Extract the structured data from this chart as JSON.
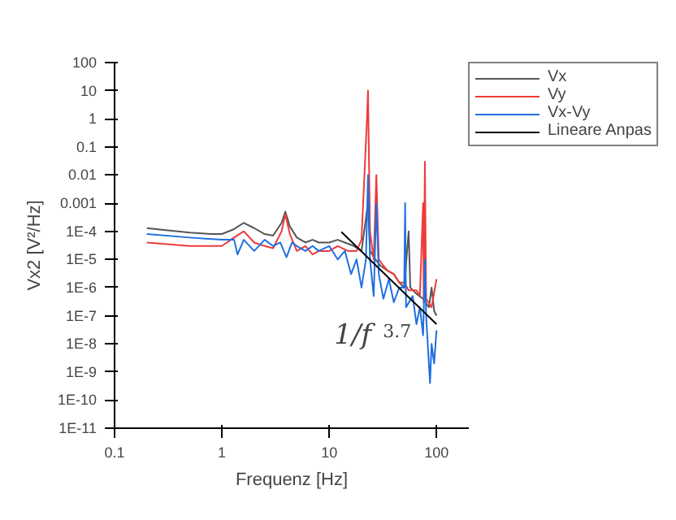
{
  "chart_data": {
    "type": "line",
    "xlabel": "Frequenz [Hz]",
    "ylabel": "Vx2 [V²/Hz]",
    "log": "xy",
    "grid": false,
    "legend": "top right",
    "xlim": [
      0.1,
      200
    ],
    "xticks": [
      0.1,
      1,
      10,
      100
    ],
    "ylim": [
      1e-11,
      100
    ],
    "yticks": [
      100,
      10,
      1,
      0.1,
      0.01,
      0.001,
      {
        "value": 0.0001,
        "label": "1E-4"
      },
      {
        "value": 1e-05,
        "label": "1E-5"
      },
      {
        "value": 1e-06,
        "label": "1E-6"
      },
      {
        "value": 1e-07,
        "label": "1E-7"
      },
      {
        "value": 1e-08,
        "label": "1E-8"
      },
      {
        "value": 1e-09,
        "label": "1E-9"
      },
      {
        "value": 1e-10,
        "label": "1E-10"
      },
      {
        "value": 1e-11,
        "label": "1E-11"
      }
    ],
    "series": [
      {
        "name": "Vx",
        "color": "#555555",
        "x": [
          0.2,
          0.3,
          0.5,
          0.8,
          1.0,
          1.3,
          1.6,
          2.0,
          2.5,
          3.0,
          3.6,
          3.9,
          4.3,
          5,
          6,
          7,
          8,
          10,
          12,
          14,
          17,
          20,
          23,
          24,
          27,
          30,
          35,
          40,
          45,
          50,
          55,
          57,
          65,
          75,
          85,
          90,
          95,
          100
        ],
        "values": [
          0.00013,
          0.00011,
          9e-05,
          8e-05,
          8e-05,
          0.00012,
          0.0002,
          0.00013,
          8e-05,
          7e-05,
          0.0002,
          0.0005,
          0.00015,
          6e-05,
          4e-05,
          5e-05,
          4e-05,
          4e-05,
          5e-05,
          4e-05,
          3e-05,
          2e-05,
          0.001,
          2e-05,
          1e-05,
          6e-06,
          4e-06,
          3e-06,
          1.5e-06,
          1e-06,
          0.0001,
          1e-06,
          6e-07,
          4e-07,
          2e-07,
          1e-06,
          1.5e-07,
          1e-07
        ]
      },
      {
        "name": "Vy",
        "color": "#ee3b3b",
        "x": [
          0.2,
          0.5,
          1.0,
          1.3,
          1.6,
          2,
          2.5,
          3,
          3.6,
          3.9,
          4.3,
          5,
          6,
          7,
          8,
          10,
          12,
          15,
          18,
          20,
          22.5,
          23,
          24,
          26,
          27.5,
          29,
          32,
          35,
          40,
          45,
          50,
          55,
          65,
          70,
          75,
          76,
          78,
          80,
          90,
          100
        ],
        "values": [
          4e-05,
          3e-05,
          3e-05,
          6e-05,
          0.0001,
          4e-05,
          3e-05,
          2.5e-05,
          0.0001,
          0.0004,
          8e-05,
          2e-05,
          3e-05,
          1.5e-05,
          2e-05,
          2e-05,
          3e-05,
          2e-05,
          2e-05,
          5e-05,
          1,
          10,
          0.0001,
          1e-05,
          0.01,
          1e-05,
          6e-06,
          4e-06,
          3e-06,
          1.5e-06,
          1.5e-06,
          8e-07,
          8e-07,
          5e-07,
          0.001,
          3e-07,
          0.03,
          4e-07,
          2e-07,
          2e-06
        ]
      },
      {
        "name": "Vx-Vy",
        "color": "#1f6fe0",
        "x": [
          0.2,
          0.5,
          1.0,
          1.3,
          1.4,
          1.6,
          2,
          2.5,
          3,
          3.5,
          4,
          4.5,
          5,
          6,
          7,
          8,
          10,
          12,
          14,
          16,
          18,
          20,
          22,
          23,
          24,
          26,
          27.5,
          29,
          32,
          36,
          40,
          45,
          50,
          51,
          52,
          60,
          65,
          70,
          75,
          78,
          80,
          87,
          90,
          95,
          100
        ],
        "values": [
          8e-05,
          6e-05,
          5e-05,
          5e-05,
          1.5e-05,
          5e-05,
          2e-05,
          5e-05,
          3e-05,
          4e-05,
          1.2e-05,
          4e-05,
          3e-05,
          2e-05,
          3e-05,
          2e-05,
          3e-05,
          1e-05,
          2e-05,
          3e-06,
          1e-05,
          1e-06,
          1e-05,
          0.01,
          1e-05,
          5e-07,
          0.001,
          3e-06,
          4e-07,
          2e-06,
          3e-07,
          1e-06,
          1e-06,
          0.001,
          2e-07,
          5e-07,
          5e-08,
          2e-07,
          2e-08,
          1e-05,
          1e-07,
          4e-10,
          1e-08,
          2e-09,
          3e-08
        ]
      },
      {
        "name": "Lineare Anpas",
        "color": "#000000",
        "x": [
          13,
          100
        ],
        "values": [
          9.5e-05,
          5e-08
        ]
      }
    ],
    "annotations": [
      "1/f$^{3.7}$"
    ]
  }
}
